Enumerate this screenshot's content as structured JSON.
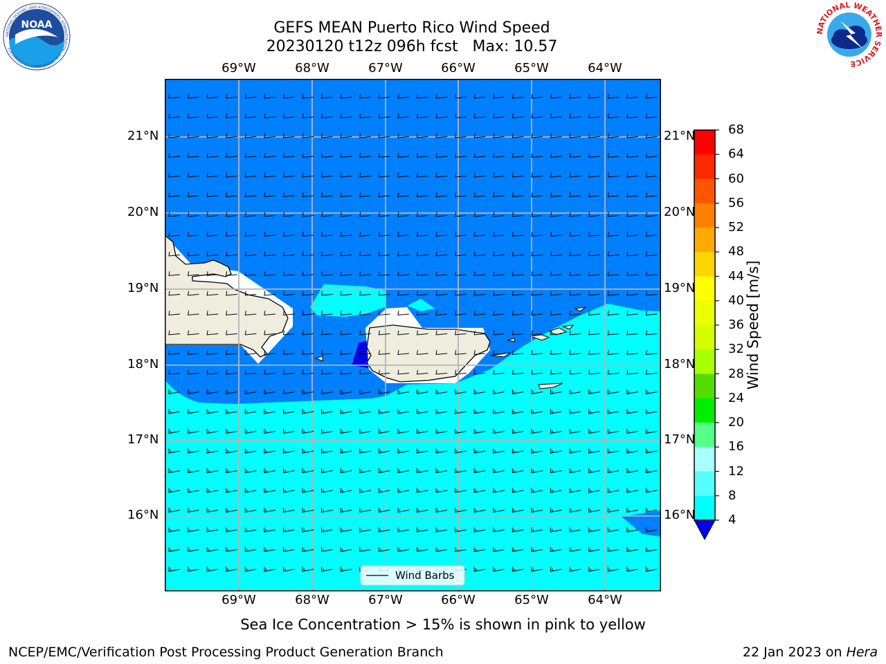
{
  "title_line1": "GEFS MEAN Puerto Rico Wind Speed",
  "title_line2": "20230120 t12z 096h fcst   Max: 10.57",
  "subtitle": "Sea Ice Concentration > 15% is shown in pink to yellow",
  "footer_left": "NCEP/EMC/Verification Post Processing Product Generation Branch",
  "footer_right_date": "22 Jan 2023 on",
  "footer_right_machine": "Hera",
  "legend_label": "Wind Barbs",
  "colorbar": {
    "label": "Wind Speed [m/s]",
    "ticks": [
      "68",
      "64",
      "60",
      "56",
      "52",
      "48",
      "44",
      "40",
      "36",
      "32",
      "28",
      "24",
      "20",
      "16",
      "12",
      "8",
      "4"
    ],
    "colors": [
      "#ff0000",
      "#ff2800",
      "#ff5500",
      "#ff8000",
      "#ffaa00",
      "#ffd500",
      "#ffff00",
      "#eaff00",
      "#d5ff00",
      "#aaff00",
      "#55dd00",
      "#00ee00",
      "#55ff88",
      "#aaffff",
      "#55ffff",
      "#00ffff",
      "#0080ff"
    ],
    "under_color": "#0000ee"
  },
  "lon_labels": [
    "69°W",
    "68°W",
    "67°W",
    "66°W",
    "65°W",
    "64°W"
  ],
  "lat_labels": [
    "21°N",
    "20°N",
    "19°N",
    "18°N",
    "17°N",
    "16°N"
  ],
  "colors": {
    "band_4_8": "#0080ff",
    "band_8_12": "#00ffff",
    "land": "#efedde",
    "low_wind": "#0000ee"
  },
  "logos": {
    "left": "NOAA",
    "left_ring": "NATIONAL OCEANIC AND ATMOSPHERIC ADMINISTRATION · U.S. DEPARTMENT OF COMMERCE",
    "right_ring": "NATIONAL WEATHER SERVICE"
  }
}
